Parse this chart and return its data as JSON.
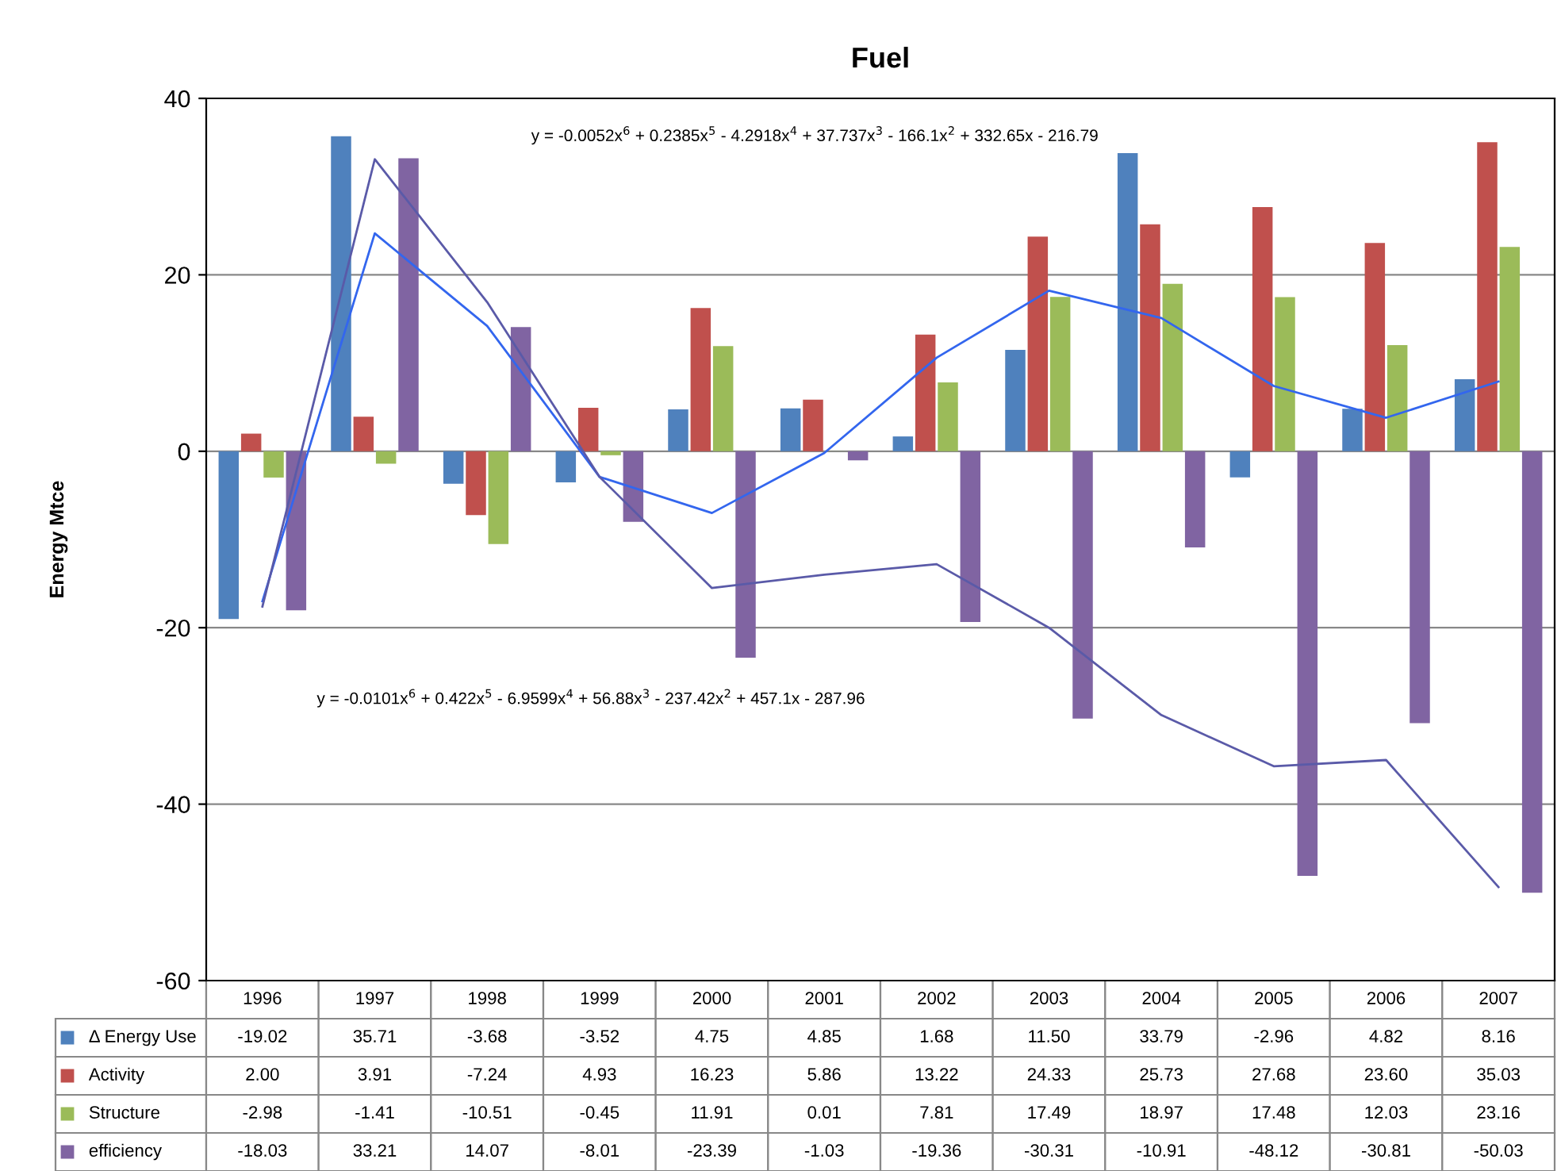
{
  "chart_data": {
    "type": "bar",
    "title": "Fuel",
    "ylabel": "Energy Mtce",
    "categories": [
      "1996",
      "1997",
      "1998",
      "1999",
      "2000",
      "2001",
      "2002",
      "2003",
      "2004",
      "2005",
      "2006",
      "2007"
    ],
    "series": [
      {
        "name": "Δ Energy Use",
        "color": "#4f81bd",
        "values": [
          -19.02,
          35.71,
          -3.68,
          -3.52,
          4.75,
          4.85,
          1.68,
          11.5,
          33.79,
          -2.96,
          4.82,
          8.16
        ],
        "value_labels": [
          "-19.02",
          "35.71",
          "-3.68",
          "-3.52",
          "4.75",
          "4.85",
          "1.68",
          "11.50",
          "33.79",
          "-2.96",
          "4.82",
          "8.16"
        ]
      },
      {
        "name": "Activity",
        "color": "#c0504d",
        "values": [
          2.0,
          3.91,
          -7.24,
          4.93,
          16.23,
          5.86,
          13.22,
          24.33,
          25.73,
          27.68,
          23.6,
          35.03
        ],
        "value_labels": [
          "2.00",
          "3.91",
          "-7.24",
          "4.93",
          "16.23",
          "5.86",
          "13.22",
          "24.33",
          "25.73",
          "27.68",
          "23.60",
          "35.03"
        ]
      },
      {
        "name": "Structure",
        "color": "#9bbb59",
        "values": [
          -2.98,
          -1.41,
          -10.51,
          -0.45,
          11.91,
          0.01,
          7.81,
          17.49,
          18.97,
          17.48,
          12.03,
          23.16
        ],
        "value_labels": [
          "-2.98",
          "-1.41",
          "-10.51",
          "-0.45",
          "11.91",
          "0.01",
          "7.81",
          "17.49",
          "18.97",
          "17.48",
          "12.03",
          "23.16"
        ]
      },
      {
        "name": "efficiency",
        "color": "#8064a2",
        "values": [
          -18.03,
          33.21,
          14.07,
          -8.01,
          -23.39,
          -1.03,
          -19.36,
          -30.31,
          -10.91,
          -48.12,
          -30.81,
          -50.03
        ],
        "value_labels": [
          "-18.03",
          "33.21",
          "14.07",
          "-8.01",
          "-23.39",
          "-1.03",
          "-19.36",
          "-30.31",
          "-10.91",
          "-48.12",
          "-30.81",
          "-50.03"
        ]
      },
      {
        "type": "line",
        "color": "#3366ee",
        "values": [
          -17,
          24.7,
          14.2,
          -2.9,
          -7,
          -0.2,
          10.6,
          18.2,
          15.1,
          7.4,
          3.8,
          7.9
        ]
      },
      {
        "type": "line",
        "color": "#5a5aa8",
        "values": [
          -17.6,
          33.1,
          16.9,
          -2.9,
          -15.5,
          -14,
          -12.8,
          -20,
          -29.9,
          -35.7,
          -35,
          -49.4
        ]
      }
    ],
    "ylim": [
      -60,
      40
    ],
    "yticks": [
      -60,
      -40,
      -20,
      0,
      20,
      40
    ],
    "grid": "y",
    "legend": "bottom",
    "annotations": [
      "y = -0.0052x$^{6}$ + 0.2385x$^{5}$ - 4.2918x$^{4}$ + 37.737x$^{3}$ - 166.1x$^{2}$ + 332.65x - 216.79",
      "y = -0.0101x$^{6}$ + 0.422x$^{5}$ - 6.9599x$^{4}$ + 56.88x$^{3}$ - 237.42x$^{2}$ + 457.1x - 287.96"
    ]
  }
}
